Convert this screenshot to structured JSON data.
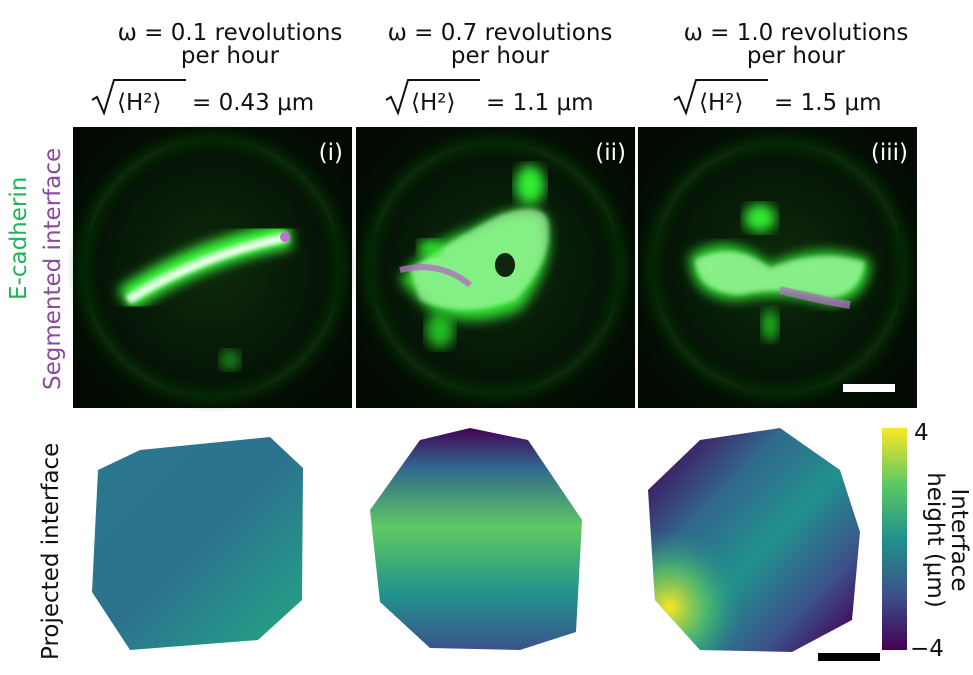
{
  "columns": [
    {
      "omega": [
        "ω = 0.1 revolutions",
        "per hour"
      ],
      "roughness": {
        "symbol": "⟨H²⟩",
        "value": "= 0.43 μm"
      },
      "panel": "(i)"
    },
    {
      "omega": [
        "ω = 0.7 revolutions",
        "per hour"
      ],
      "roughness": {
        "symbol": "⟨H²⟩",
        "value": "= 1.1 μm"
      },
      "panel": "(ii)"
    },
    {
      "omega": [
        "ω = 1.0 revolutions",
        "per hour"
      ],
      "roughness": {
        "symbol": "⟨H²⟩",
        "value": "= 1.5 μm"
      },
      "panel": "(iii)"
    }
  ],
  "side_labels": {
    "top": [
      "E-cadherin",
      "Segmented interface"
    ],
    "bottom": "Projected interface"
  },
  "colorbar": {
    "title": [
      "Interface",
      "height (μm)"
    ],
    "max": "4",
    "min": "−4"
  }
}
